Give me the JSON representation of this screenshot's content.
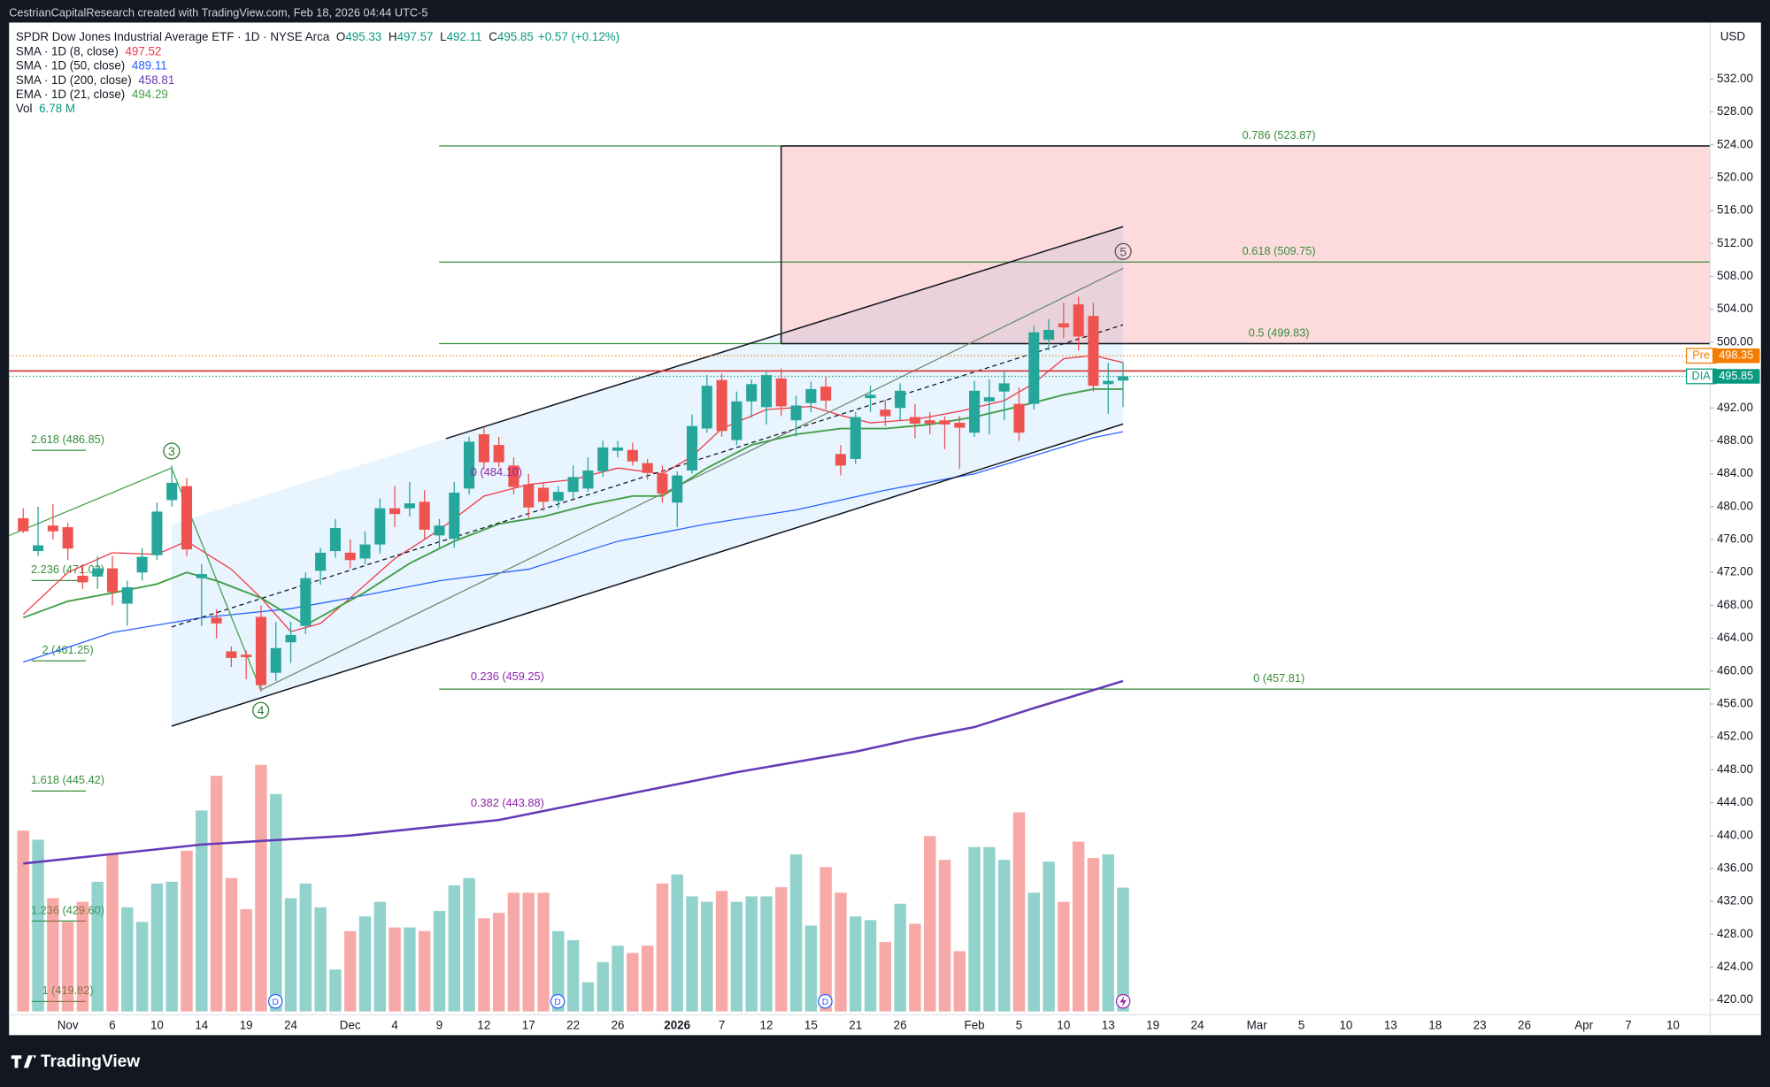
{
  "header": {
    "attribution": "CestrianCapitalResearch created with TradingView.com, Feb 18, 2026 04:44 UTC-5"
  },
  "footer": {
    "logo": "TradingView"
  },
  "chart_data": {
    "type": "candlestick",
    "title": "SPDR Dow Jones Industrial Average ETF · 1D · NYSE Arca",
    "ohlc_legend": [
      {
        "key": "O",
        "value": 495.33
      },
      {
        "key": "H",
        "value": 497.57
      },
      {
        "key": "L",
        "value": 492.11
      },
      {
        "key": "C",
        "value": 495.85
      }
    ],
    "change": "+0.57 (+0.12%)",
    "currency": "USD",
    "up_color": "#26a69a",
    "down_color": "#ef5350",
    "grid": false,
    "ylim": [
      418.2,
      538.6
    ],
    "yticks": [
      {
        "value": 420,
        "label": "420.00"
      },
      {
        "value": 424,
        "label": "424.00"
      },
      {
        "value": 428,
        "label": "428.00"
      },
      {
        "value": 432,
        "label": "432.00"
      },
      {
        "value": 436,
        "label": "436.00"
      },
      {
        "value": 440,
        "label": "440.00"
      },
      {
        "value": 444,
        "label": "444.00"
      },
      {
        "value": 448,
        "label": "448.00"
      },
      {
        "value": 452,
        "label": "452.00"
      },
      {
        "value": 456,
        "label": "456.00"
      },
      {
        "value": 460,
        "label": "460.00"
      },
      {
        "value": 464,
        "label": "464.00"
      },
      {
        "value": 468,
        "label": "468.00"
      },
      {
        "value": 472,
        "label": "472.00"
      },
      {
        "value": 476,
        "label": "476.00"
      },
      {
        "value": 480,
        "label": "480.00"
      },
      {
        "value": 484,
        "label": "484.00"
      },
      {
        "value": 488,
        "label": "488.00"
      },
      {
        "value": 492,
        "label": "492.00"
      },
      {
        "value": 496,
        "label": "496.00"
      },
      {
        "value": 500,
        "label": "500.00"
      },
      {
        "value": 504,
        "label": "504.00"
      },
      {
        "value": 508,
        "label": "508.00"
      },
      {
        "value": 512,
        "label": "512.00"
      },
      {
        "value": 516,
        "label": "516.00"
      },
      {
        "value": 520,
        "label": "520.00"
      },
      {
        "value": 524,
        "label": "524.00"
      },
      {
        "value": 528,
        "label": "528.00"
      },
      {
        "value": 532,
        "label": "532.00"
      }
    ],
    "categories": [
      null,
      null,
      null,
      "Nov",
      null,
      null,
      "6",
      null,
      null,
      "10",
      null,
      null,
      "14",
      null,
      null,
      "19",
      null,
      null,
      "24",
      null,
      null,
      null,
      "Dec",
      null,
      null,
      "4",
      null,
      null,
      "9",
      null,
      null,
      "12",
      null,
      null,
      "17",
      null,
      null,
      "22",
      null,
      null,
      "26",
      null,
      null,
      null,
      "2026",
      null,
      null,
      "7",
      null,
      null,
      "12",
      null,
      null,
      "15",
      null,
      null,
      "21",
      null,
      null,
      "26",
      null,
      null,
      null,
      null,
      "Feb",
      null,
      null,
      "5",
      null,
      null,
      "10",
      null,
      null,
      "13",
      null,
      null,
      "19",
      null,
      null,
      "24",
      null,
      null,
      null,
      "Mar",
      null,
      null,
      "5",
      null,
      null,
      "10",
      null,
      null,
      "13",
      null,
      null,
      "18",
      null,
      null,
      "23",
      null,
      null,
      "26",
      null,
      null,
      null,
      "Apr",
      null,
      null,
      "7",
      null,
      null,
      "10",
      null,
      null
    ],
    "open": [
      478.6,
      474.6,
      477.7,
      477.5,
      471.6,
      471.5,
      472.5,
      468.2,
      472,
      474.1,
      480.8,
      482.5,
      471.3,
      466.5,
      462.4,
      462,
      466.6,
      459.8,
      463.5,
      465.5,
      472.2,
      474.6,
      474.4,
      473.7,
      475.4,
      479.8,
      479.8,
      480.6,
      476.5,
      476.1,
      482.2,
      488.8,
      487.5,
      485,
      482.7,
      482.3,
      480.7,
      481.8,
      482.2,
      484.3,
      486.8,
      486.9,
      485.3,
      484,
      480.5,
      484.4,
      489.5,
      495.4,
      488.1,
      492.8,
      492.1,
      495.6,
      490.5,
      492.6,
      494.6,
      486.4,
      485.8,
      493.2,
      491.8,
      492,
      490.9,
      490.5,
      490.5,
      490.2,
      489,
      492.8,
      494,
      492.5,
      492.5,
      500.3,
      502.3,
      504.6,
      503.2,
      494.9,
      495.33,
      null,
      null,
      null,
      null,
      null,
      null,
      null,
      null,
      null,
      null,
      null,
      null,
      null,
      null,
      null,
      null,
      null,
      null,
      null,
      null,
      null,
      null,
      null,
      null,
      null,
      null,
      null,
      null,
      null,
      null,
      null,
      null,
      null,
      null,
      null,
      null,
      null,
      null,
      null
    ],
    "high": [
      479.8,
      480,
      480.3,
      478,
      473,
      474,
      474,
      471,
      475,
      480.5,
      485,
      483.5,
      473,
      467.5,
      463,
      462.5,
      468,
      466,
      466,
      472,
      475,
      478.5,
      476,
      477,
      481,
      482.5,
      483,
      482,
      478.5,
      483,
      488.5,
      489.6,
      488.5,
      486,
      484,
      483,
      482.5,
      485,
      486,
      488,
      488,
      487.8,
      485.8,
      485,
      484.3,
      491.2,
      496,
      496.2,
      494,
      495.5,
      496.5,
      496.8,
      493.5,
      495.2,
      495.8,
      487.5,
      491.5,
      494.7,
      493,
      495,
      492.5,
      491.5,
      491,
      491,
      495.3,
      495.5,
      496.5,
      494.5,
      502,
      502.8,
      504.8,
      505.5,
      504.8,
      497.5,
      497.57,
      null,
      null,
      null,
      null,
      null,
      null,
      null,
      null,
      null,
      null,
      null,
      null,
      null,
      null,
      null,
      null,
      null,
      null,
      null,
      null,
      null,
      null,
      null,
      null,
      null,
      null,
      null,
      null,
      null,
      null,
      null,
      null,
      null,
      null,
      null,
      null,
      null,
      null,
      null
    ],
    "low": [
      476.8,
      474,
      476,
      473.5,
      470,
      470,
      468,
      465.5,
      471,
      473.5,
      480,
      474,
      465.5,
      464,
      460.5,
      459,
      457.5,
      458.8,
      461,
      464.5,
      470.5,
      473.8,
      472.5,
      473,
      474.3,
      477.5,
      478.8,
      476,
      475,
      475,
      481.5,
      484.5,
      484.8,
      481.5,
      478.6,
      479.5,
      479.8,
      481,
      481.8,
      483.6,
      486,
      485,
      483.3,
      480.5,
      477.5,
      484,
      489,
      488.5,
      487.5,
      490.8,
      490,
      491,
      488.5,
      491.5,
      491.8,
      483.8,
      485.2,
      491.5,
      489.8,
      490.5,
      488.3,
      488.8,
      487,
      484.6,
      488.5,
      488.8,
      490.5,
      488,
      491.8,
      499,
      500.5,
      499,
      494,
      491.3,
      492.11,
      null,
      null,
      null,
      null,
      null,
      null,
      null,
      null,
      null,
      null,
      null,
      null,
      null,
      null,
      null,
      null,
      null,
      null,
      null,
      null,
      null,
      null,
      null,
      null,
      null,
      null,
      null,
      null,
      null,
      null,
      null,
      null,
      null,
      null,
      null,
      null,
      null,
      null,
      null
    ],
    "close": [
      477,
      475.3,
      477,
      474.9,
      470.8,
      472.5,
      469.6,
      470.2,
      473.9,
      479.4,
      482.9,
      474.8,
      471.8,
      465.8,
      461.6,
      461.7,
      458.3,
      462.8,
      464.4,
      471.3,
      474.4,
      477.4,
      473.5,
      475.4,
      479.8,
      479.1,
      480.4,
      477.2,
      477.7,
      481.7,
      487.9,
      485.4,
      485.4,
      482.4,
      479.9,
      480.6,
      481.8,
      483.6,
      484.4,
      487.2,
      487.2,
      485.5,
      484.1,
      481.6,
      483.8,
      489.8,
      494.7,
      489.2,
      492.8,
      494.9,
      496,
      492.2,
      492.3,
      494.3,
      492.9,
      485,
      490.9,
      493.6,
      491,
      494.1,
      490.1,
      490.1,
      490,
      489.6,
      494.1,
      493.3,
      495,
      489,
      501.2,
      501.5,
      501.8,
      500.7,
      494.7,
      495.3,
      495.85,
      null,
      null,
      null,
      null,
      null,
      null,
      null,
      null,
      null,
      null,
      null,
      null,
      null,
      null,
      null,
      null,
      null,
      null,
      null,
      null,
      null,
      null,
      null,
      null,
      null,
      null,
      null,
      null,
      null,
      null,
      null,
      null,
      null,
      null,
      null,
      null,
      null,
      null,
      null
    ],
    "volume": [
      9.9,
      9.4,
      6.2,
      4.9,
      6.0,
      7.1,
      8.6,
      5.7,
      4.9,
      7.0,
      7.1,
      8.8,
      11.0,
      12.9,
      7.3,
      5.6,
      13.5,
      11.9,
      6.2,
      7.0,
      5.7,
      2.3,
      4.4,
      5.2,
      6.0,
      4.6,
      4.6,
      4.4,
      5.5,
      6.9,
      7.3,
      5.1,
      5.4,
      6.5,
      6.5,
      6.5,
      4.4,
      3.9,
      1.6,
      2.7,
      3.6,
      3.2,
      3.6,
      7.0,
      7.5,
      6.3,
      6.0,
      6.6,
      6.0,
      6.3,
      6.3,
      6.8,
      8.6,
      4.7,
      7.9,
      6.5,
      5.2,
      5.0,
      3.8,
      5.9,
      4.8,
      9.6,
      8.3,
      3.3,
      9.0,
      9.0,
      8.3,
      10.9,
      6.5,
      8.2,
      6.0,
      9.3,
      8.4,
      8.6,
      6.78,
      null,
      null,
      null,
      null,
      null,
      null,
      null,
      null,
      null,
      null,
      null,
      null,
      null,
      null,
      null,
      null,
      null,
      null,
      null,
      null,
      null,
      null,
      null,
      null,
      null,
      null,
      null,
      null,
      null,
      null,
      null,
      null,
      null,
      null,
      null,
      null,
      null,
      null,
      null
    ],
    "volume_ylim": [
      0,
      35
    ],
    "volume_legend": {
      "name": "Vol",
      "label": "6.78 M",
      "color": "#089981"
    },
    "moving_averages": [
      {
        "name": "SMA · 1D (8, close)",
        "last": 497.52,
        "color": "#f23645",
        "line_width": 1,
        "x": [
          0,
          3,
          6,
          9,
          11,
          14,
          16,
          18,
          20,
          22,
          25,
          28,
          31,
          34,
          37,
          40,
          43,
          45,
          47,
          50,
          53,
          55,
          57,
          60,
          63,
          66,
          68,
          70,
          72,
          74
        ],
        "values": [
          466.9,
          472,
          474.4,
          474.2,
          475.8,
          472.4,
          468.9,
          464.8,
          465.8,
          468.9,
          473.7,
          477.2,
          481.3,
          482.7,
          483.3,
          484.7,
          484,
          486.1,
          489.5,
          491.8,
          492.2,
          491.1,
          490.2,
          490.6,
          491.6,
          492.9,
          495,
          498,
          498.4,
          497.52
        ]
      },
      {
        "name": "SMA · 1D (50, close)",
        "last": 489.11,
        "color": "#2962ff",
        "line_width": 1,
        "x": [
          0,
          6,
          12,
          18,
          22,
          28,
          34,
          40,
          46,
          52,
          58,
          64,
          68,
          72,
          74
        ],
        "values": [
          461.1,
          464.7,
          466.5,
          467.6,
          468.9,
          471,
          472.4,
          475.8,
          477.9,
          479.6,
          482,
          484,
          486.2,
          488.4,
          489.11
        ]
      },
      {
        "name": "SMA · 1D (200, close)",
        "last": 458.81,
        "color": "#673ab7",
        "line_width": 2,
        "x": [
          0,
          12,
          22,
          32,
          40,
          48,
          56,
          60,
          64,
          68,
          72,
          74
        ],
        "values": [
          436.6,
          438.9,
          440,
          441.9,
          444.8,
          447.7,
          450.2,
          451.8,
          453.2,
          455.5,
          457.7,
          458.81
        ]
      },
      {
        "name": "EMA · 1D (21, close)",
        "last": 494.29,
        "color": "#43a047",
        "line_width": 1.5,
        "x": [
          0,
          3,
          6,
          9,
          11,
          13,
          16,
          19,
          23,
          26,
          29,
          32,
          35,
          38,
          41,
          43,
          46,
          49,
          52,
          55,
          58,
          61,
          64,
          67,
          70,
          72,
          74
        ],
        "values": [
          466.5,
          468.5,
          469.5,
          470.6,
          472,
          471,
          468.9,
          465.6,
          469.6,
          473.1,
          475.8,
          477.9,
          478.8,
          480.2,
          481.3,
          481.3,
          484.7,
          487.5,
          488.8,
          489.5,
          489.5,
          490,
          490.9,
          492.2,
          493.6,
          494.3,
          494.29
        ]
      }
    ],
    "fib_main": [
      {
        "label": "0.786 (523.87)",
        "value": 523.87
      },
      {
        "label": "0.618 (509.75)",
        "value": 509.75
      },
      {
        "label": "0.5 (499.83)",
        "value": 499.83
      },
      {
        "label": "0 (457.81)",
        "value": 457.81
      }
    ],
    "fib_main_color": "#388e3c",
    "fib_left": [
      {
        "label": "2.618 (486.85)",
        "value": 486.85
      },
      {
        "label": "2.236 (471.02)",
        "value": 471.02
      },
      {
        "label": "2 (461.25)",
        "value": 461.25
      },
      {
        "label": "1.618 (445.42)",
        "value": 445.42
      },
      {
        "label": "1.236 (429.60)",
        "value": 429.6
      },
      {
        "label": "1 (419.82)",
        "value": 419.82
      }
    ],
    "fib_purple": [
      {
        "label": "0 (484.10)",
        "value": 484.1
      },
      {
        "label": "0.236 (459.25)",
        "value": 459.25
      },
      {
        "label": "0.382 (443.88)",
        "value": 443.88
      }
    ],
    "fib_purple_color": "#8e24aa",
    "price_tags": [
      {
        "label": "Pre",
        "value": 498.35,
        "color": "#f57c00"
      },
      {
        "label": "DIA",
        "value": 495.85,
        "color": "#089981"
      }
    ],
    "wave_labels": [
      "3",
      "4",
      "5"
    ],
    "dividend_markers": [
      "D",
      "D",
      "D"
    ]
  }
}
